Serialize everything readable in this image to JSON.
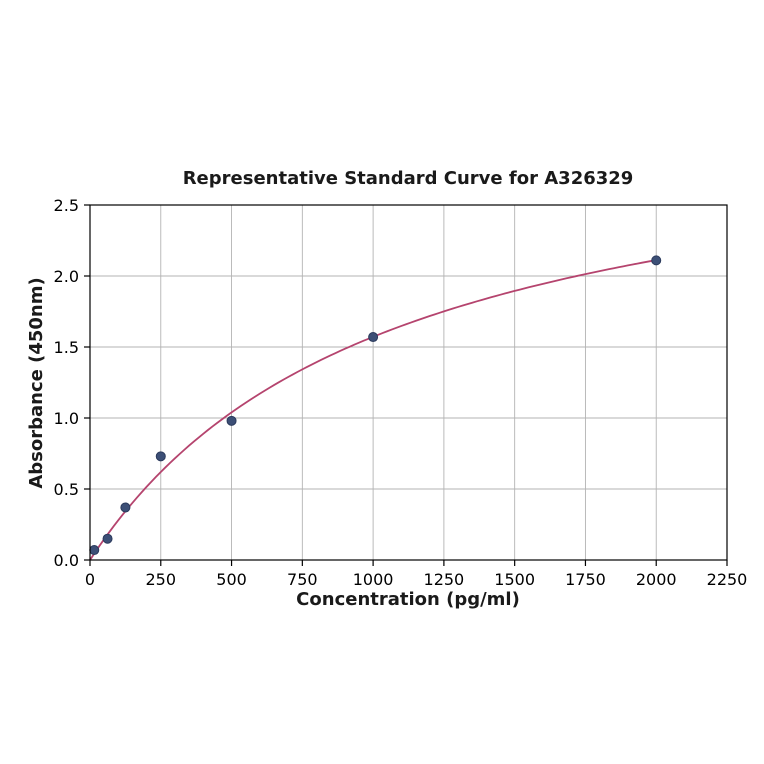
{
  "chart_data": {
    "type": "scatter",
    "title": "Representative Standard Curve for A326329",
    "xlabel": "Concentration (pg/ml)",
    "ylabel": "Absorbance (450nm)",
    "x": [
      15,
      62,
      125,
      250,
      500,
      1000,
      2000
    ],
    "y": [
      0.07,
      0.15,
      0.37,
      0.73,
      0.98,
      1.57,
      2.11
    ],
    "xlim": [
      0,
      2250
    ],
    "ylim": [
      0,
      2.5
    ],
    "xticks": [
      0,
      250,
      500,
      750,
      1000,
      1250,
      1500,
      1750,
      2000,
      2250
    ],
    "yticks": [
      0,
      0.5,
      1,
      1.5,
      2,
      2.5
    ],
    "grid": true,
    "legend": "none",
    "fit": {
      "model": "saturation",
      "amax": 3.22,
      "kd": 1049
    },
    "colors": {
      "curve": "#b5446e",
      "marker": "#3c4f76",
      "marker_edge": "#2b3a5c",
      "grid": "#b3b3b3",
      "axis": "#000000",
      "background": "#ffffff"
    }
  }
}
